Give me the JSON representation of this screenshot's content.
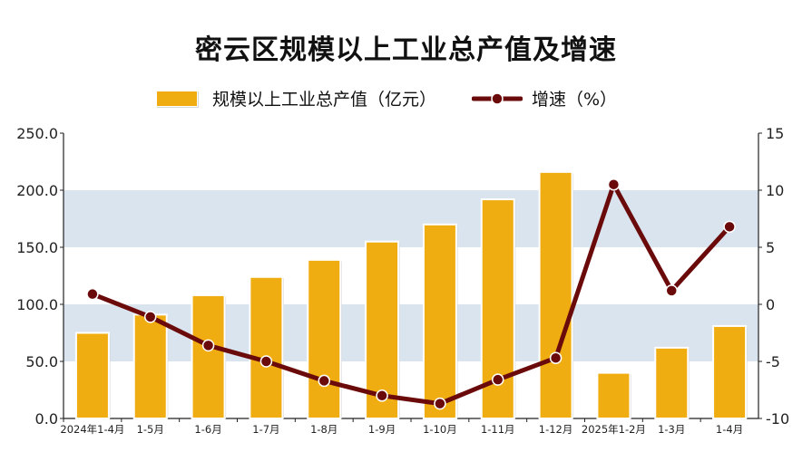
{
  "title": "密云区规模以上工业总产值及增速",
  "legend": {
    "bar_label": "规模以上工业总产值（亿元）",
    "line_label": "增速（%）"
  },
  "colors": {
    "bar": "#f0ad11",
    "line": "#6b0a0a",
    "band": "#d9e4ef",
    "axis": "#222222"
  },
  "chart_data": {
    "type": "bar",
    "title": "密云区规模以上工业总产值及增速",
    "categories": [
      "2024年1-4月",
      "1-5月",
      "1-6月",
      "1-7月",
      "1-8月",
      "1-9月",
      "1-10月",
      "1-11月",
      "1-12月",
      "2025年1-2月",
      "1-3月",
      "1-4月"
    ],
    "series": [
      {
        "name": "规模以上工业总产值（亿元）",
        "type": "bar",
        "axis": "left",
        "values": [
          75,
          91,
          108,
          124,
          139,
          155,
          170,
          192,
          216,
          40,
          62,
          81
        ]
      },
      {
        "name": "增速（%）",
        "type": "line",
        "axis": "right",
        "values": [
          0.9,
          -1.1,
          -3.6,
          -5.0,
          -6.7,
          -8.0,
          -8.7,
          -6.6,
          -4.7,
          10.5,
          1.2,
          6.8
        ]
      }
    ],
    "ylim_left": [
      0,
      250
    ],
    "ylim_right": [
      -10,
      15
    ],
    "yticks_left": [
      "0.0",
      "50.0",
      "100.0",
      "150.0",
      "200.0",
      "250.0"
    ],
    "yticks_right": [
      "-10",
      "-5",
      "0",
      "5",
      "10",
      "15"
    ],
    "grid": "alternating horizontal bands",
    "legend_position": "top-center"
  }
}
